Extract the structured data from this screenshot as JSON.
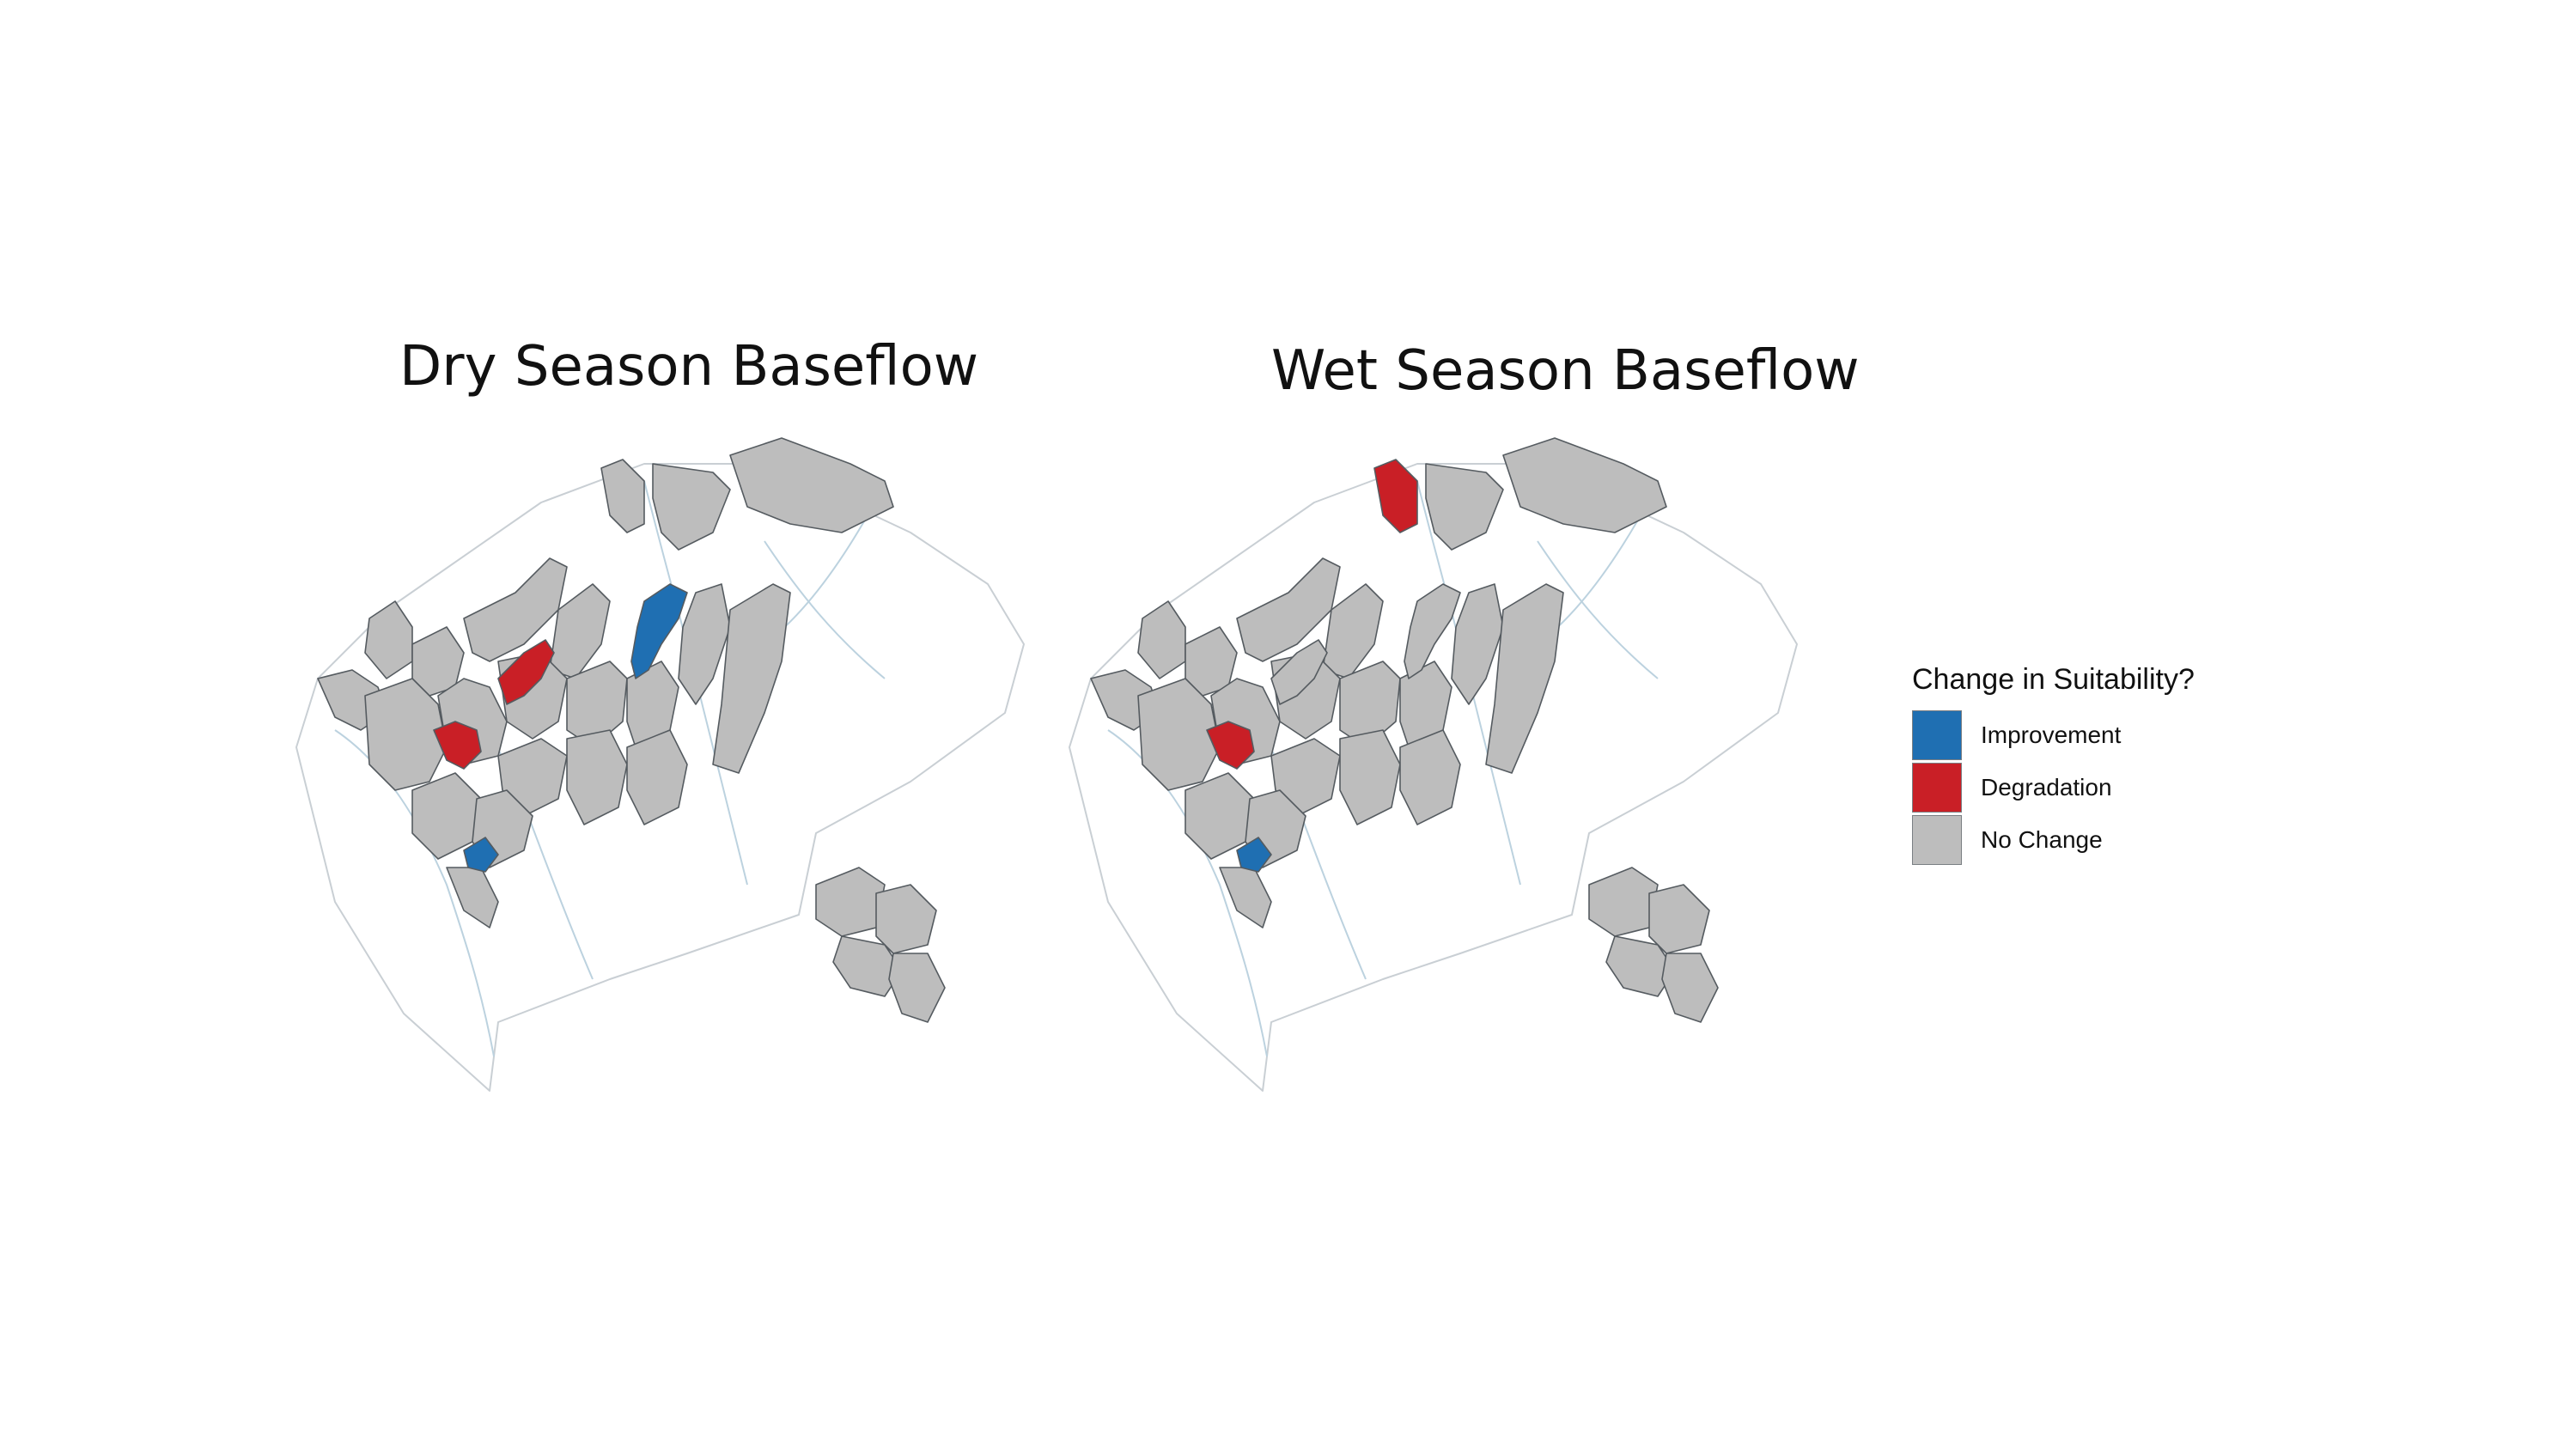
{
  "maps": [
    {
      "title": "Dry Season Baseflow",
      "highlighted": [
        {
          "unit": "u2",
          "category": "improvement"
        },
        {
          "unit": "u6",
          "category": "improvement"
        },
        {
          "unit": "u4",
          "category": "degradation"
        },
        {
          "unit": "u5",
          "category": "degradation"
        }
      ]
    },
    {
      "title": "Wet Season Baseflow",
      "highlighted": [
        {
          "unit": "u6",
          "category": "improvement"
        },
        {
          "unit": "u1",
          "category": "degradation"
        },
        {
          "unit": "u5",
          "category": "degradation"
        }
      ]
    }
  ],
  "legend": {
    "title": "Change in Suitability?",
    "items": [
      {
        "key": "improvement",
        "label": "Improvement",
        "color": "#1f6fb2"
      },
      {
        "key": "degradation",
        "label": "Degradation",
        "color": "#c91f26"
      },
      {
        "key": "no_change",
        "label": "No Change",
        "color": "#bdbdbd"
      }
    ]
  },
  "colors": {
    "no_change": "#bdbdbd",
    "improvement": "#1f6fb2",
    "degradation": "#c91f26"
  }
}
